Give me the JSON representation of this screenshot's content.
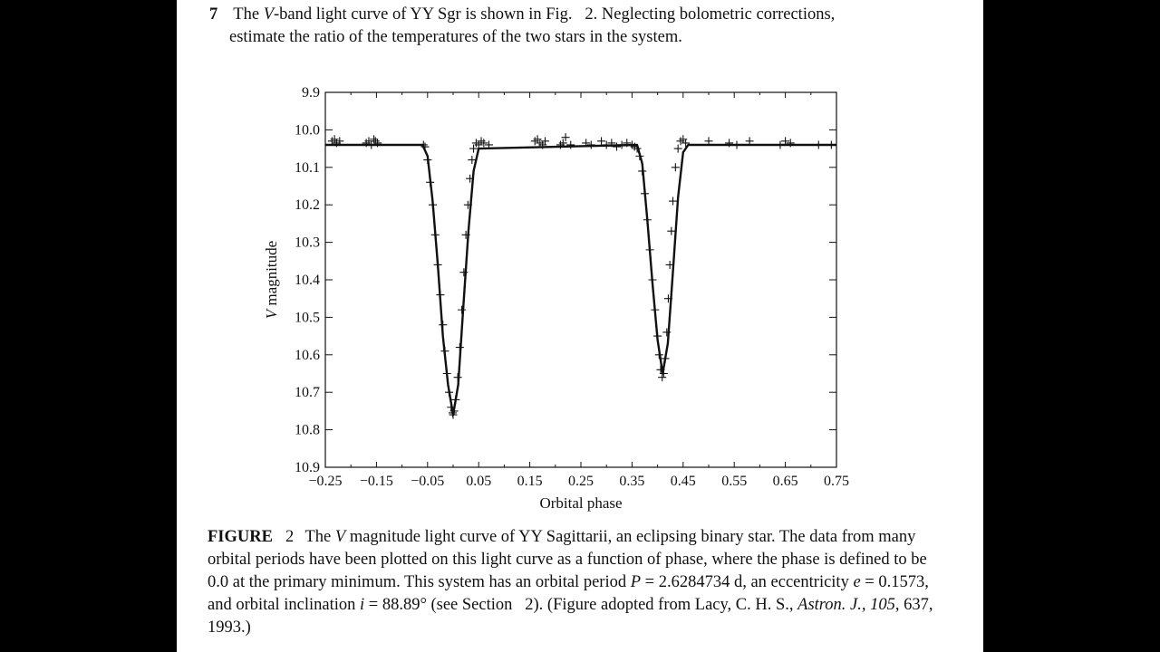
{
  "problem": {
    "number": "7",
    "text_part1": "The",
    "text_italic_v": "V",
    "text_part2": "-band light curve of YY Sgr is shown in Fig.   2. Neglecting bolometric corrections,",
    "text_line2": "estimate the ratio of the temperatures of the two stars in the system."
  },
  "caption": {
    "label": "FIGURE",
    "number": "2",
    "seg1": "The ",
    "seg2_italic": "V",
    "seg3": " magnitude light curve of YY Sagittarii, an eclipsing binary star. The data from many orbital periods have been plotted on this light curve as a function of phase, where the phase is defined to be 0.0 at the primary minimum. This system has an orbital period ",
    "seg4_italic": "P",
    "seg5": " = 2.6284734 d, an eccentricity ",
    "seg6_italic": "e",
    "seg7": " = 0.1573, and orbital inclination ",
    "seg8_italic": "i",
    "seg9": " = 88.89° (see Section   2). (Figure adopted from Lacy, C. H. S., ",
    "seg10_italic": "Astron. J., 105",
    "seg11": ", 637, 1993.)"
  },
  "chart_data": {
    "type": "scatter",
    "xlabel": "Orbital phase",
    "ylabel_italic": "V",
    "ylabel_rest": " magnitude",
    "xlim": [
      -0.25,
      0.75
    ],
    "ylim": [
      9.9,
      10.9
    ],
    "y_inverted": true,
    "xticks": [
      -0.25,
      -0.15,
      -0.05,
      0.05,
      0.15,
      0.25,
      0.35,
      0.45,
      0.55,
      0.65,
      0.75
    ],
    "xtick_labels": [
      "−0.25",
      "−0.15",
      "−0.05",
      "0.05",
      "0.15",
      "0.25",
      "0.35",
      "0.45",
      "0.55",
      "0.65",
      "0.75"
    ],
    "yticks": [
      9.9,
      10.0,
      10.1,
      10.2,
      10.3,
      10.4,
      10.5,
      10.6,
      10.7,
      10.8,
      10.9
    ],
    "ytick_labels": [
      "9.9",
      "10.0",
      "10.1",
      "10.2",
      "10.3",
      "10.4",
      "10.5",
      "10.6",
      "10.7",
      "10.8",
      "10.9"
    ],
    "series": [
      {
        "kind": "observations",
        "marker": "plus",
        "x": [
          -0.237,
          -0.232,
          -0.228,
          -0.222,
          -0.17,
          -0.165,
          -0.16,
          -0.155,
          -0.152,
          -0.148,
          -0.058,
          -0.055,
          -0.05,
          -0.045,
          -0.04,
          -0.035,
          -0.03,
          -0.025,
          -0.02,
          -0.016,
          -0.012,
          -0.008,
          -0.004,
          -0.001,
          0.0,
          0.002,
          0.005,
          0.009,
          0.013,
          0.017,
          0.021,
          0.025,
          0.029,
          0.033,
          0.037,
          0.04,
          0.045,
          0.05,
          0.055,
          0.06,
          0.07,
          0.16,
          0.165,
          0.17,
          0.175,
          0.18,
          0.21,
          0.215,
          0.22,
          0.23,
          0.26,
          0.27,
          0.29,
          0.3,
          0.31,
          0.32,
          0.33,
          0.34,
          0.35,
          0.355,
          0.36,
          0.365,
          0.37,
          0.375,
          0.38,
          0.385,
          0.39,
          0.395,
          0.4,
          0.403,
          0.406,
          0.409,
          0.412,
          0.415,
          0.418,
          0.421,
          0.424,
          0.427,
          0.43,
          0.435,
          0.44,
          0.445,
          0.45,
          0.455,
          0.5,
          0.54,
          0.555,
          0.58,
          0.64,
          0.65,
          0.66,
          0.715,
          0.74
        ],
        "y": [
          10.03,
          10.025,
          10.035,
          10.03,
          10.035,
          10.03,
          10.04,
          10.025,
          10.03,
          10.035,
          10.04,
          10.045,
          10.08,
          10.14,
          10.2,
          10.28,
          10.36,
          10.44,
          10.52,
          10.59,
          10.65,
          10.7,
          10.74,
          10.755,
          10.76,
          10.75,
          10.72,
          10.66,
          10.58,
          10.48,
          10.38,
          10.28,
          10.2,
          10.13,
          10.08,
          10.05,
          10.035,
          10.04,
          10.03,
          10.035,
          10.04,
          10.03,
          10.025,
          10.035,
          10.04,
          10.03,
          10.04,
          10.035,
          10.02,
          10.04,
          10.035,
          10.04,
          10.03,
          10.04,
          10.035,
          10.045,
          10.04,
          10.035,
          10.04,
          10.045,
          10.05,
          10.07,
          10.11,
          10.17,
          10.24,
          10.32,
          10.4,
          10.48,
          10.55,
          10.6,
          10.64,
          10.66,
          10.65,
          10.61,
          10.54,
          10.45,
          10.36,
          10.27,
          10.19,
          10.1,
          10.05,
          10.03,
          10.025,
          10.035,
          10.03,
          10.035,
          10.04,
          10.03,
          10.04,
          10.03,
          10.035,
          10.04,
          10.04
        ]
      },
      {
        "kind": "fit",
        "style": "solid line",
        "x": [
          -0.25,
          -0.06,
          -0.05,
          -0.04,
          -0.03,
          -0.02,
          -0.01,
          0.0,
          0.01,
          0.02,
          0.03,
          0.04,
          0.05,
          0.36,
          0.37,
          0.38,
          0.39,
          0.4,
          0.41,
          0.42,
          0.43,
          0.44,
          0.45,
          0.46,
          0.75
        ],
        "y": [
          10.04,
          10.04,
          10.07,
          10.19,
          10.36,
          10.55,
          10.68,
          10.76,
          10.68,
          10.47,
          10.27,
          10.11,
          10.05,
          10.04,
          10.09,
          10.24,
          10.41,
          10.56,
          10.65,
          10.57,
          10.38,
          10.18,
          10.06,
          10.04,
          10.04
        ]
      }
    ]
  }
}
